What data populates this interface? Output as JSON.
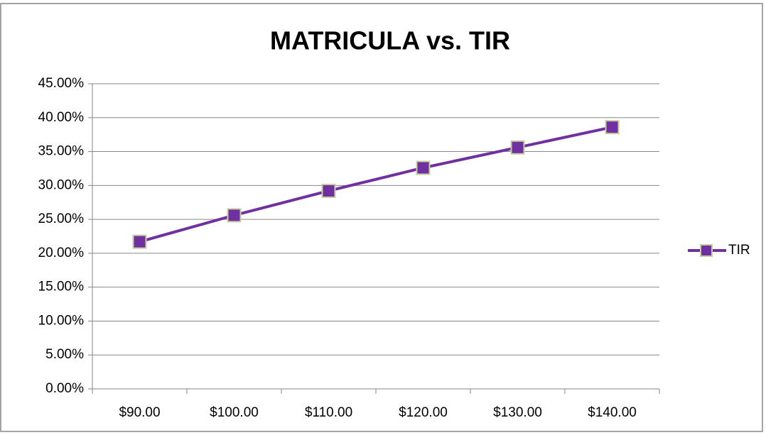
{
  "chart_data": {
    "type": "line",
    "title": "MATRICULA vs. TIR",
    "categories": [
      "$90.00",
      "$100.00",
      "$110.00",
      "$120.00",
      "$130.00",
      "$140.00"
    ],
    "series": [
      {
        "name": "TIR",
        "color": "#7030a0",
        "values": [
          21.7,
          25.6,
          29.2,
          32.6,
          35.6,
          38.6
        ]
      }
    ],
    "ylim": [
      0,
      45
    ],
    "yticks": [
      {
        "value": 0,
        "label": "0.00%"
      },
      {
        "value": 5,
        "label": "5.00%"
      },
      {
        "value": 10,
        "label": "10.00%"
      },
      {
        "value": 15,
        "label": "15.00%"
      },
      {
        "value": 20,
        "label": "20.00%"
      },
      {
        "value": 25,
        "label": "25.00%"
      },
      {
        "value": 30,
        "label": "30.00%"
      },
      {
        "value": 35,
        "label": "35.00%"
      },
      {
        "value": 40,
        "label": "40.00%"
      },
      {
        "value": 45,
        "label": "45.00%"
      }
    ],
    "grid": true,
    "legend": "right"
  }
}
